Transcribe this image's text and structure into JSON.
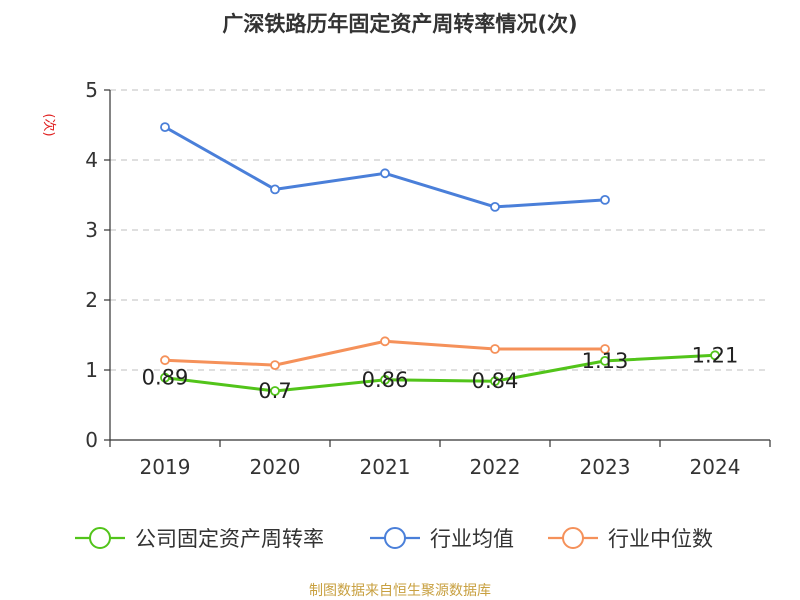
{
  "chart_data": {
    "type": "line",
    "title": "广深铁路历年固定资产周转率情况(次)",
    "ylabel": "(次)",
    "xlabel": "",
    "categories": [
      "2019",
      "2020",
      "2021",
      "2022",
      "2023",
      "2024"
    ],
    "ylim": [
      0,
      5
    ],
    "yticks": [
      0,
      1,
      2,
      3,
      4,
      5
    ],
    "grid": true,
    "legend_position": "bottom",
    "series": [
      {
        "name": "公司固定资产周转率",
        "color": "#52c41a",
        "values": [
          0.89,
          0.7,
          0.86,
          0.84,
          1.13,
          1.21
        ],
        "labels": [
          "0.89",
          "0.7",
          "0.86",
          "0.84",
          "1.13",
          "1.21"
        ]
      },
      {
        "name": "行业均值",
        "color": "#4a7fd9",
        "values": [
          4.47,
          3.58,
          3.81,
          3.33,
          3.43,
          null
        ],
        "labels": null
      },
      {
        "name": "行业中位数",
        "color": "#f5915a",
        "values": [
          1.14,
          1.07,
          1.41,
          1.3,
          1.3,
          null
        ],
        "labels": null
      }
    ],
    "source": "制图数据来自恒生聚源数据库"
  },
  "colors": {
    "title": "#333333",
    "ylabel": "#e02020",
    "axis": "#333333",
    "grid": "#cccccc",
    "source": "#c8a040"
  }
}
